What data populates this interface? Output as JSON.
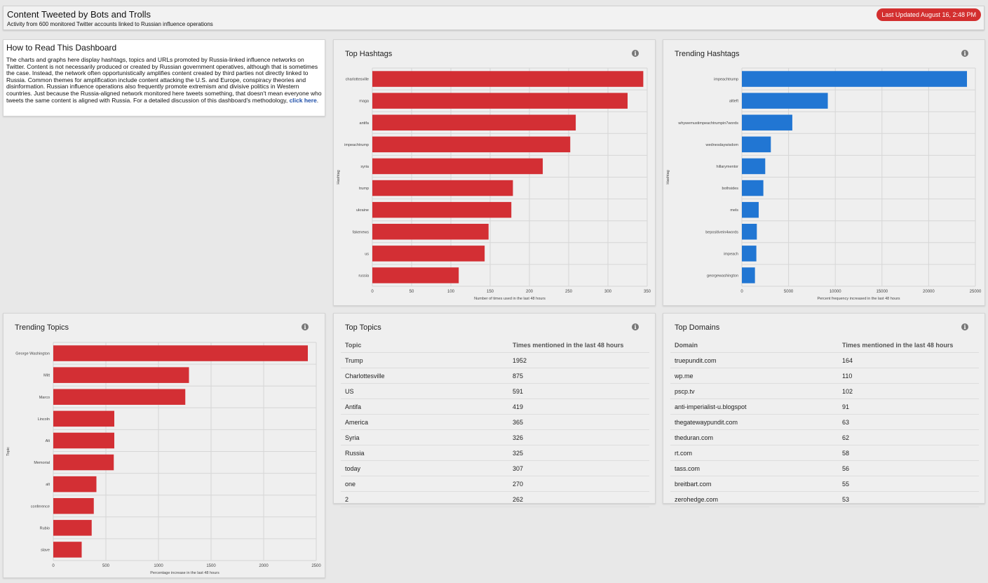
{
  "header": {
    "title": "Content Tweeted by Bots and Trolls",
    "subtitle": "Activity from 600 monitored Twitter accounts linked to Russian influence operations",
    "updated": "Last Updated August 16, 2:48 PM"
  },
  "read": {
    "title": "How to Read This Dashboard",
    "body": "The charts and graphs here display hashtags, topics and URLs promoted by Russia-linked influence networks on Twitter. Content is not necessarily produced or created by Russian government operatives, although that is sometimes the case. Instead, the network often opportunistically amplifies content created by third parties not directly linked to Russia. Common themes for amplification include content attacking the U.S. and Europe, conspiracy theories and disinformation. Russian influence operations also frequently promote extremism and divisive politics in Western countries. Just because the Russia-aligned network monitored here tweets something, that doesn't mean everyone who tweets the same content is aligned with Russia. For a detailed discussion of this dashboard's methodology,",
    "link": "click here",
    "end": "."
  },
  "panels": {
    "top_hashtags": "Top Hashtags",
    "trending_hashtags": "Trending Hashtags",
    "trending_topics": "Trending Topics",
    "top_topics": "Top Topics",
    "top_domains": "Top Domains",
    "info_icon": "i"
  },
  "chart_data": [
    {
      "id": "top_hashtags",
      "type": "bar",
      "orientation": "horizontal",
      "color": "#d32f34",
      "categories": [
        "charlottesville",
        "maga",
        "antifa",
        "impeachtrump",
        "syria",
        "trump",
        "ukraine",
        "fakenews",
        "us",
        "russia"
      ],
      "values": [
        345,
        325,
        259,
        252,
        217,
        179,
        177,
        148,
        143,
        110
      ],
      "xlabel": "Number of times used in the last 48 hours",
      "ylabel": "Hashtag",
      "xlim": [
        0,
        350
      ],
      "ticks": [
        0,
        50,
        100,
        150,
        200,
        250,
        300,
        350
      ]
    },
    {
      "id": "trending_hashtags",
      "type": "bar",
      "orientation": "horizontal",
      "color": "#2176d3",
      "categories": [
        "impeachtrump",
        "altleft",
        "whywemustimpeachtrumpin7words",
        "wednesdaywisdom",
        "hillarymentor",
        "bothsides",
        "mels",
        "bepositivein4words",
        "impeach",
        "georgewashington"
      ],
      "values": [
        24100,
        9200,
        5400,
        3100,
        2500,
        2300,
        1800,
        1600,
        1550,
        1400
      ],
      "xlabel": "Percent frequency increased in the last 48 hours",
      "ylabel": "Hashtag",
      "xlim": [
        0,
        25000
      ],
      "ticks": [
        0,
        5000,
        10000,
        15000,
        20000,
        25000
      ]
    },
    {
      "id": "trending_topics",
      "type": "bar",
      "orientation": "horizontal",
      "color": "#d32f34",
      "categories": [
        "George Washington",
        "Mitt",
        "Marco",
        "Lincoln",
        "Alt",
        "Memorial",
        "alt",
        "conference",
        "Rubio",
        "slave"
      ],
      "values": [
        2420,
        1290,
        1255,
        580,
        580,
        575,
        410,
        385,
        365,
        270
      ],
      "xlabel": "Percentage increase in the last 48 hours",
      "ylabel": "Topic",
      "xlim": [
        0,
        2500
      ],
      "ticks": [
        0,
        500,
        1000,
        1500,
        2000,
        2500
      ]
    },
    {
      "id": "top_topics",
      "type": "table",
      "columns": [
        "Topic",
        "Times mentioned in the last 48 hours"
      ],
      "rows": [
        [
          "Trump",
          "1952"
        ],
        [
          "Charlottesville",
          "875"
        ],
        [
          "US",
          "591"
        ],
        [
          "Antifa",
          "419"
        ],
        [
          "America",
          "365"
        ],
        [
          "Syria",
          "326"
        ],
        [
          "Russia",
          "325"
        ],
        [
          "today",
          "307"
        ],
        [
          "one",
          "270"
        ],
        [
          "2",
          "262"
        ]
      ]
    },
    {
      "id": "top_domains",
      "type": "table",
      "columns": [
        "Domain",
        "Times mentioned in the last 48 hours"
      ],
      "rows": [
        [
          "truepundit.com",
          "164"
        ],
        [
          "wp.me",
          "110"
        ],
        [
          "pscp.tv",
          "102"
        ],
        [
          "anti-imperialist-u.blogspot",
          "91"
        ],
        [
          "thegatewaypundit.com",
          "63"
        ],
        [
          "theduran.com",
          "62"
        ],
        [
          "rt.com",
          "58"
        ],
        [
          "tass.com",
          "56"
        ],
        [
          "breitbart.com",
          "55"
        ],
        [
          "zerohedge.com",
          "53"
        ]
      ]
    }
  ]
}
